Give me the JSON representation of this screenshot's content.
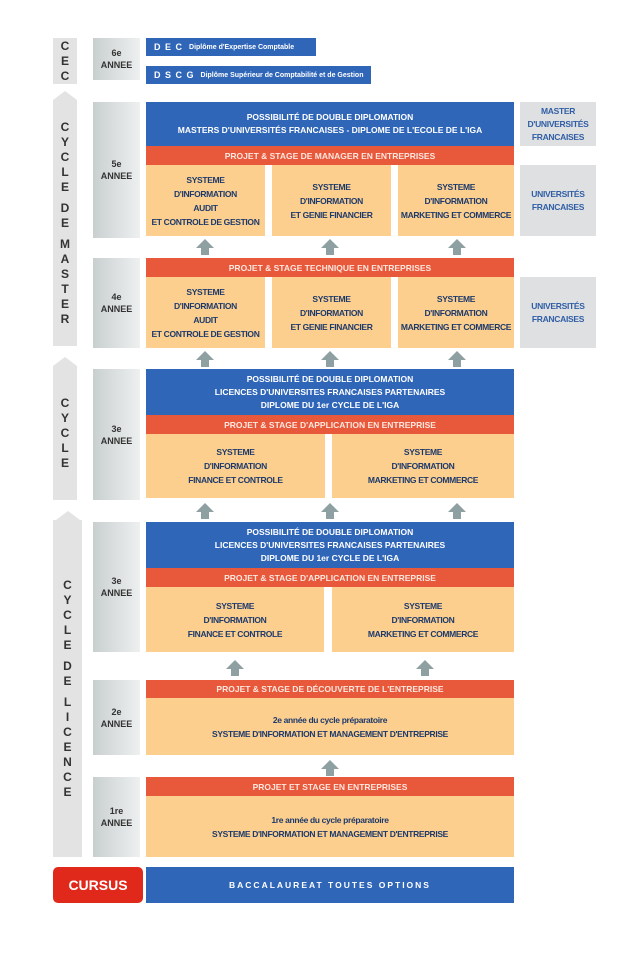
{
  "colors": {
    "blue": "#2f66b8",
    "red": "#e8583a",
    "peach": "#fccf8f",
    "grey": "#dfe0e1",
    "text": "#1d3a6b"
  },
  "cycles": {
    "cec": [
      "C",
      "E",
      "C"
    ],
    "master": [
      "C",
      "Y",
      "C",
      "L",
      "E",
      "",
      "D",
      "E",
      "",
      "M",
      "A",
      "S",
      "T",
      "E",
      "R"
    ],
    "cycle": [
      "C",
      "Y",
      "C",
      "L",
      "E"
    ],
    "licence": [
      "C",
      "Y",
      "C",
      "L",
      "E",
      "",
      "D",
      "E",
      "",
      "L",
      "I",
      "C",
      "E",
      "N",
      "C",
      "E"
    ]
  },
  "years": {
    "y6": {
      "num": "6e",
      "label": "ANNEE"
    },
    "y5": {
      "num": "5e",
      "label": "ANNEE"
    },
    "y4": {
      "num": "4e",
      "label": "ANNEE"
    },
    "y3a": {
      "num": "3e",
      "label": "ANNEE"
    },
    "y3b": {
      "num": "3e",
      "label": "ANNEE"
    },
    "y2": {
      "num": "2e",
      "label": "ANNEE"
    },
    "y1": {
      "num": "1re",
      "label": "ANNEE"
    }
  },
  "cec": {
    "dec": {
      "abbr": "D E C",
      "label": "Diplôme d'Expertise Comptable"
    },
    "dscg": {
      "abbr": "D S C G",
      "label": "Diplôme Supérieur de Comptabilité et de Gestion"
    }
  },
  "y5": {
    "blue": [
      "POSSIBILITÉ DE DOUBLE DIPLOMATION",
      "MASTERS D'UNIVERSITÉS FRANCAISES  -  DIPLOME DE L'ECOLE DE L'IGA"
    ],
    "red": "PROJET & STAGE DE MANAGER EN ENTREPRISES",
    "cards": [
      [
        "SYSTEME",
        "D'INFORMATION",
        "AUDIT",
        "ET CONTROLE DE GESTION"
      ],
      [
        "SYSTEME",
        "D'INFORMATION",
        "ET GENIE FINANCIER"
      ],
      [
        "SYSTEME",
        "D'INFORMATION",
        "MARKETING ET COMMERCE"
      ]
    ],
    "side1": [
      "MASTER",
      "D'UNIVERSITÉS",
      "FRANCAISES"
    ],
    "side2": [
      "UNIVERSITÉS",
      "FRANCAISES"
    ]
  },
  "y4": {
    "red": "PROJET & STAGE TECHNIQUE EN ENTREPRISES",
    "cards": [
      [
        "SYSTEME",
        "D'INFORMATION",
        "AUDIT",
        "ET CONTROLE DE GESTION"
      ],
      [
        "SYSTEME",
        "D'INFORMATION",
        "ET GENIE FINANCIER"
      ],
      [
        "SYSTEME",
        "D'INFORMATION",
        "MARKETING ET COMMERCE"
      ]
    ],
    "side": [
      "UNIVERSITÉS",
      "FRANCAISES"
    ]
  },
  "y3a": {
    "blue": [
      "POSSIBILITÉ DE DOUBLE DIPLOMATION",
      "LICENCES D'UNIVERSITES FRANCAISES PARTENAIRES",
      "DIPLOME DU 1er CYCLE DE L'IGA"
    ],
    "red": "PROJET & STAGE D'APPLICATION EN ENTREPRISE",
    "cards": [
      [
        "SYSTEME",
        "D'INFORMATION",
        "FINANCE ET CONTROLE"
      ],
      [
        "SYSTEME",
        "D'INFORMATION",
        "MARKETING ET COMMERCE"
      ]
    ]
  },
  "y3b": {
    "blue": [
      "POSSIBILITÉ DE DOUBLE DIPLOMATION",
      "LICENCES D'UNIVERSITES FRANCAISES PARTENAIRES",
      "DIPLOME DU 1er CYCLE DE L'IGA"
    ],
    "red": "PROJET & STAGE D'APPLICATION EN ENTREPRISE",
    "cards": [
      [
        "SYSTEME",
        "D'INFORMATION",
        "FINANCE ET CONTROLE"
      ],
      [
        "SYSTEME",
        "D'INFORMATION",
        "MARKETING ET COMMERCE"
      ]
    ]
  },
  "y2": {
    "red": "PROJET & STAGE DE DÉCOUVERTE DE L'ENTREPRISE",
    "body": [
      "2e année du cycle préparatoire",
      "SYSTEME D'INFORMATION ET MANAGEMENT D'ENTREPRISE"
    ]
  },
  "y1": {
    "red": "PROJET ET STAGE EN ENTREPRISES",
    "body": [
      "1re année du cycle préparatoire",
      "SYSTEME D'INFORMATION ET MANAGEMENT D'ENTREPRISE"
    ]
  },
  "footer": {
    "cursus": "CURSUS",
    "bac": "BACCALAUREAT TOUTES OPTIONS"
  }
}
